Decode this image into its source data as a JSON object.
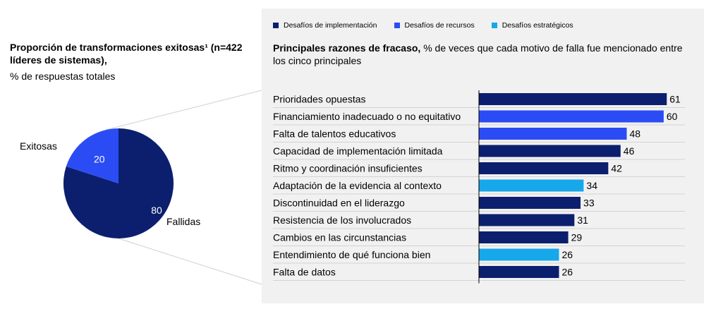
{
  "left_panel": {
    "title_bold": "Proporción de transformaciones exitosas¹ (n=422 líderes de sistemas),",
    "subtitle": "% de respuestas totales"
  },
  "right_panel": {
    "title_bold": "Principales razones de fracaso,",
    "title_rest": " % de veces que cada motivo de falla fue mencionado entre los cinco principales"
  },
  "colors": {
    "implementation": "#0b1f6e",
    "resources": "#2b4cf5",
    "strategic": "#16a8ea",
    "panel_bg": "#f1f1f1",
    "connector": "#d0d0d0"
  },
  "chart_data": [
    {
      "type": "pie",
      "slices": [
        {
          "label": "Exitosas",
          "value": 20,
          "group": "resources"
        },
        {
          "label": "Fallidas",
          "value": 80,
          "group": "implementation"
        }
      ]
    },
    {
      "type": "bar",
      "orientation": "horizontal",
      "legend": [
        {
          "key": "implementation",
          "label": "Desafíos de implementación"
        },
        {
          "key": "resources",
          "label": "Desafíos de recursos"
        },
        {
          "key": "strategic",
          "label": "Desafíos estratégicos"
        }
      ],
      "legend_position": "top",
      "xlim": [
        0,
        63
      ],
      "categories": [
        "Prioridades opuestas",
        "Financiamiento inadecuado o no equitativo",
        "Falta de talentos educativos",
        "Capacidad de implementación limitada",
        "Ritmo y coordinación insuficientes",
        "Adaptación de la evidencia al contexto",
        "Discontinuidad en el liderazgo",
        "Resistencia de los involucrados",
        "Cambios en las circunstancias",
        "Entendimiento de qué funciona bien",
        "Falta de datos"
      ],
      "values": [
        61,
        60,
        48,
        46,
        42,
        34,
        33,
        31,
        29,
        26,
        26
      ],
      "groups": [
        "implementation",
        "resources",
        "resources",
        "implementation",
        "implementation",
        "strategic",
        "implementation",
        "implementation",
        "implementation",
        "strategic",
        "implementation"
      ]
    }
  ]
}
